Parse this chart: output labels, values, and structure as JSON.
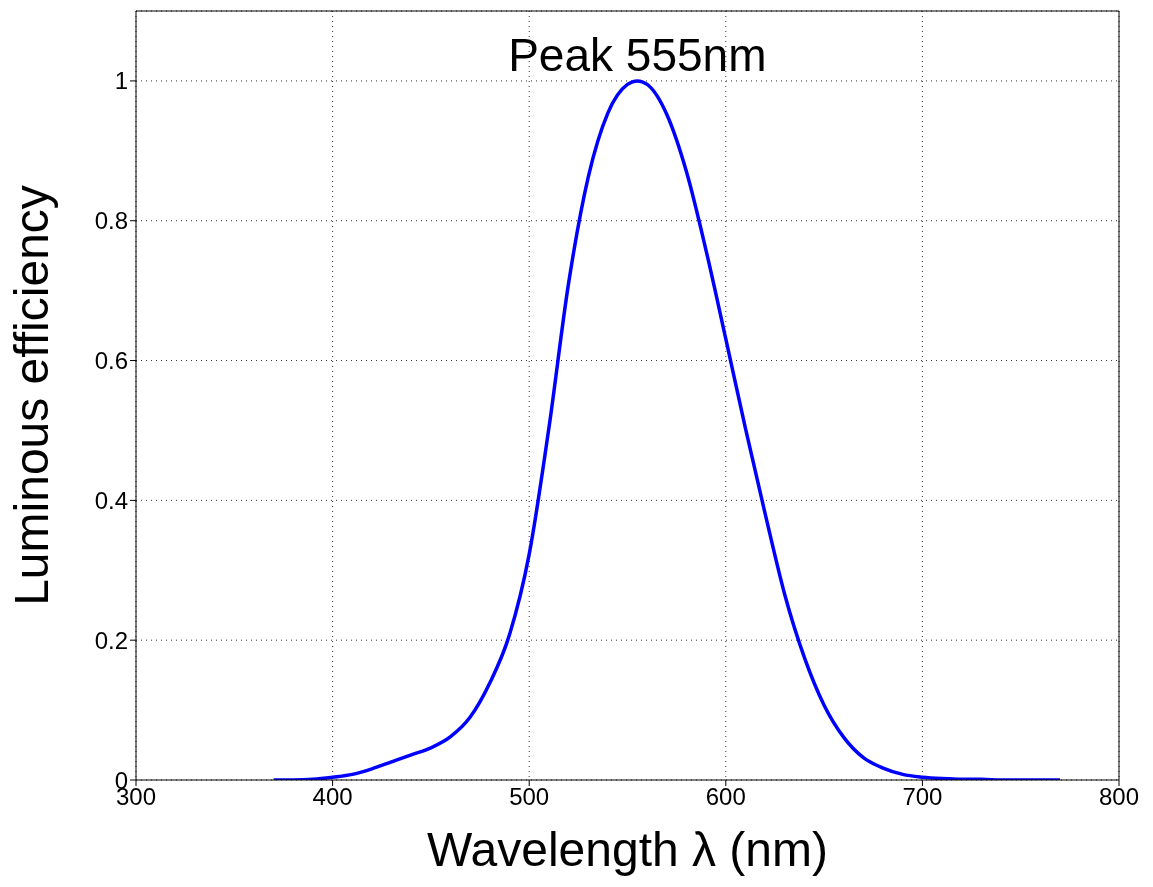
{
  "chart_data": {
    "type": "line",
    "xlabel": "Wavelength λ (nm)",
    "ylabel": "Luminous efficiency",
    "annotations": [
      {
        "text": "Peak 555nm",
        "x": 555,
        "y": 1
      }
    ],
    "x": [
      370,
      380,
      390,
      400,
      410,
      420,
      430,
      440,
      450,
      460,
      470,
      480,
      490,
      500,
      510,
      520,
      530,
      540,
      550,
      555,
      560,
      570,
      580,
      590,
      600,
      610,
      620,
      630,
      640,
      650,
      660,
      670,
      680,
      690,
      700,
      710,
      720,
      730,
      740,
      750,
      760,
      770
    ],
    "series": [
      {
        "color": "#0000ff",
        "values": [
          0,
          0,
          0.001,
          0.004,
          0.008,
          0.016,
          0.026,
          0.036,
          0.046,
          0.062,
          0.09,
          0.139,
          0.208,
          0.323,
          0.503,
          0.71,
          0.862,
          0.954,
          0.995,
          1,
          0.995,
          0.952,
          0.87,
          0.757,
          0.631,
          0.503,
          0.381,
          0.265,
          0.175,
          0.107,
          0.061,
          0.032,
          0.017,
          0.008,
          0.004,
          0.002,
          0.001,
          0.001,
          0,
          0,
          0,
          0
        ]
      }
    ],
    "xlim": [
      300,
      800
    ],
    "xticks": [
      300,
      400,
      500,
      600,
      700,
      800
    ],
    "ylim": [
      0,
      1.1
    ],
    "yticks": [
      0,
      0.2,
      0.4,
      0.6,
      0.8,
      1
    ],
    "grid": true,
    "line_style": "solid",
    "marker": "none"
  }
}
